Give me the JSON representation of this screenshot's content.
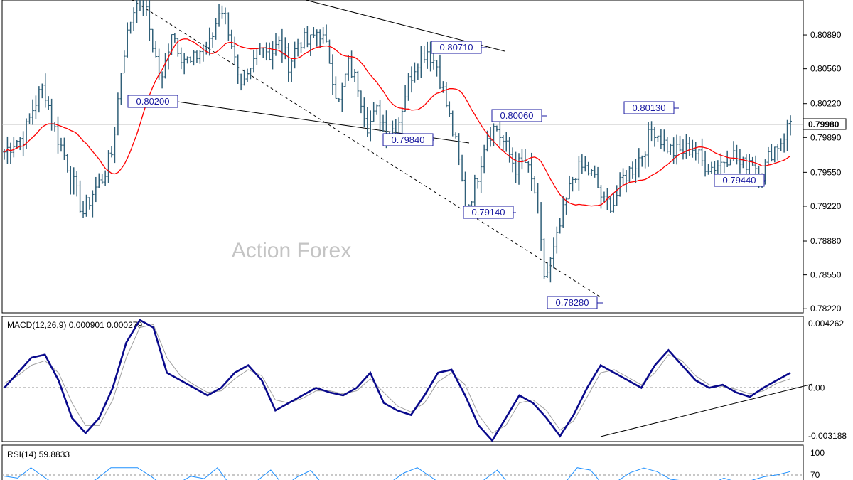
{
  "watermark": "Action Forex",
  "current_price_label": "0.79980",
  "colors": {
    "bars": "#2f5f78",
    "ma": "#ff0000",
    "label_text": "#1a1aa0",
    "label_border": "#1a1aa0",
    "macd": "#0a0a8c",
    "macd_signal": "#a0a0a0",
    "rsi": "#1e90ff",
    "watermark": "#c4c4c4"
  },
  "chart_data": [
    {
      "type": "ohlc",
      "panel": "price",
      "y_ticks": [
        "0.80890",
        "0.80560",
        "0.80220",
        "0.79890",
        "0.79550",
        "0.79220",
        "0.78880",
        "0.78550",
        "0.78220"
      ],
      "ylim": [
        0.7818,
        0.8123
      ],
      "current_price": 0.7998,
      "annotations": [
        {
          "label": "0.80200",
          "value": 0.802
        },
        {
          "label": "0.79840",
          "value": 0.7984
        },
        {
          "label": "0.80710",
          "value": 0.8071
        },
        {
          "label": "0.80060",
          "value": 0.8006
        },
        {
          "label": "0.79140",
          "value": 0.7914
        },
        {
          "label": "0.78280",
          "value": 0.7828
        },
        {
          "label": "0.80130",
          "value": 0.8013
        },
        {
          "label": "0.79440",
          "value": 0.7944
        }
      ],
      "close_path": [
        0.7975,
        0.7985,
        0.799,
        0.802,
        0.804,
        0.8,
        0.7975,
        0.7945,
        0.7915,
        0.7935,
        0.795,
        0.7975,
        0.8065,
        0.811,
        0.813,
        0.8085,
        0.804,
        0.8095,
        0.807,
        0.806,
        0.8075,
        0.808,
        0.812,
        0.809,
        0.803,
        0.805,
        0.8085,
        0.807,
        0.808,
        0.806,
        0.8085,
        0.808,
        0.8095,
        0.807,
        0.802,
        0.806,
        0.804,
        0.8,
        0.8015,
        0.7995,
        0.8,
        0.804,
        0.8065,
        0.8075,
        0.806,
        0.802,
        0.798,
        0.792,
        0.7945,
        0.799,
        0.8,
        0.798,
        0.796,
        0.7965,
        0.7935,
        0.785,
        0.788,
        0.792,
        0.7955,
        0.796,
        0.795,
        0.7925,
        0.7925,
        0.795,
        0.796,
        0.7975,
        0.8,
        0.7985,
        0.7975,
        0.7975,
        0.798,
        0.7965,
        0.796,
        0.7965,
        0.7975,
        0.796,
        0.797,
        0.795,
        0.7975,
        0.7985,
        0.8005
      ]
    },
    {
      "type": "line",
      "panel": "macd",
      "title": "MACD(12,26,9) 0.000901 0.000279",
      "y_ticks": [
        "0.004262",
        "0.00",
        "-0.003188"
      ],
      "ylim": [
        -0.003188,
        0.004262
      ],
      "macd_path": [
        0.0,
        0.001,
        0.002,
        0.0022,
        0.0005,
        -0.002,
        -0.003,
        -0.002,
        0.0,
        0.003,
        0.0045,
        0.004,
        0.001,
        0.0005,
        0.0,
        -0.0005,
        0.0,
        0.001,
        0.0015,
        0.0005,
        -0.0015,
        -0.001,
        -0.0005,
        0.0,
        -0.0003,
        -0.0005,
        0.0,
        0.001,
        -0.001,
        -0.0015,
        -0.0018,
        -0.0005,
        0.001,
        0.0012,
        -0.0005,
        -0.0025,
        -0.0035,
        -0.002,
        -0.0005,
        -0.001,
        -0.002,
        -0.0032,
        -0.0018,
        0.0,
        0.0015,
        0.001,
        0.0005,
        0.0,
        0.0015,
        0.0025,
        0.0015,
        0.0005,
        0.0,
        0.0002,
        -0.0003,
        -0.0006,
        0.0,
        0.0005,
        0.001
      ],
      "signal_path": [
        0.0003,
        0.0008,
        0.0015,
        0.0018,
        0.001,
        -0.001,
        -0.0025,
        -0.0025,
        -0.0008,
        0.002,
        0.004,
        0.0042,
        0.002,
        0.0008,
        0.0002,
        -0.0003,
        -0.0002,
        0.0006,
        0.0012,
        0.0008,
        -0.0008,
        -0.001,
        -0.0007,
        -0.0002,
        -0.0002,
        -0.0004,
        -0.0002,
        0.0006,
        -0.0003,
        -0.0012,
        -0.0016,
        -0.001,
        0.0004,
        0.001,
        0.0002,
        -0.0018,
        -0.003,
        -0.0025,
        -0.001,
        -0.0008,
        -0.0015,
        -0.0028,
        -0.0022,
        -0.0006,
        0.001,
        0.0012,
        0.0007,
        0.0002,
        0.001,
        0.0022,
        0.0018,
        0.0008,
        0.0002,
        0.0001,
        -0.0001,
        -0.0004,
        -0.0002,
        0.0003,
        0.0006
      ]
    },
    {
      "type": "line",
      "panel": "rsi",
      "title": "RSI(14) 59.8833",
      "y_ticks": [
        "100",
        "70"
      ],
      "ylim": [
        0,
        100
      ]
    }
  ]
}
